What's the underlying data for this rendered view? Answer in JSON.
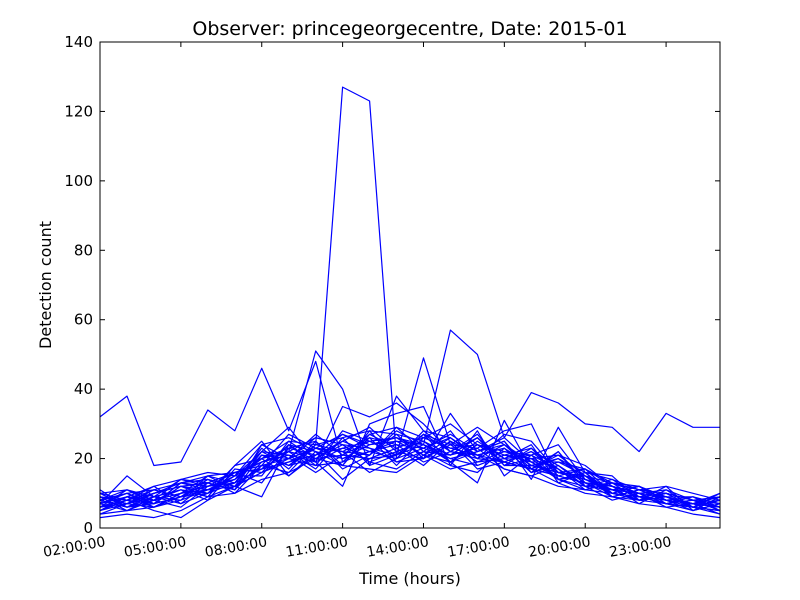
{
  "chart_data": {
    "type": "line",
    "title": "Observer: princegeorgecentre, Date: 2015-01",
    "xlabel": "Time (hours)",
    "ylabel": "Detection count",
    "ylim": [
      0,
      140
    ],
    "xlim": [
      2,
      25
    ],
    "yticks": [
      0,
      20,
      40,
      60,
      80,
      100,
      120,
      140
    ],
    "xticks": [
      {
        "value": 2,
        "label": "02:00:00"
      },
      {
        "value": 5,
        "label": "05:00:00"
      },
      {
        "value": 8,
        "label": "08:00:00"
      },
      {
        "value": 11,
        "label": "11:00:00"
      },
      {
        "value": 14,
        "label": "14:00:00"
      },
      {
        "value": 17,
        "label": "17:00:00"
      },
      {
        "value": 20,
        "label": "20:00:00"
      },
      {
        "value": 23,
        "label": "23:00:00"
      }
    ],
    "color": "#0000ff",
    "grid": false,
    "x": [
      2,
      3,
      4,
      5,
      6,
      7,
      8,
      9,
      10,
      11,
      12,
      13,
      14,
      15,
      16,
      17,
      18,
      19,
      20,
      21,
      22,
      23,
      24,
      25
    ],
    "series": [
      {
        "values": [
          32,
          38,
          18,
          19,
          34,
          28,
          46,
          28,
          48,
          19,
          22,
          25,
          24,
          57,
          50,
          26,
          39,
          36,
          30,
          29,
          22,
          33,
          29,
          29
        ]
      },
      {
        "values": [
          8,
          6,
          7,
          9,
          11,
          14,
          20,
          25,
          24,
          127,
          123,
          20,
          27,
          22,
          21,
          17,
          15,
          12,
          11,
          10,
          9,
          8,
          7,
          6
        ]
      },
      {
        "values": [
          5,
          9,
          12,
          14,
          13,
          16,
          17,
          22,
          51,
          40,
          18,
          38,
          28,
          26,
          21,
          19,
          17,
          15,
          13,
          10,
          8,
          7,
          6,
          5
        ]
      },
      {
        "values": [
          7,
          15,
          9,
          7,
          10,
          18,
          25,
          15,
          22,
          14,
          20,
          21,
          49,
          24,
          23,
          28,
          30,
          14,
          12,
          8,
          10,
          9,
          7,
          6
        ]
      },
      {
        "values": [
          10,
          11,
          8,
          14,
          16,
          15,
          22,
          29,
          19,
          35,
          32,
          36,
          30,
          22,
          26,
          18,
          18,
          16,
          17,
          13,
          11,
          12,
          10,
          8
        ]
      },
      {
        "values": [
          4,
          5,
          6,
          10,
          12,
          16,
          18,
          20,
          23,
          22,
          21,
          27,
          25,
          19,
          24,
          22,
          20,
          21,
          18,
          12,
          9,
          8,
          6,
          4
        ]
      },
      {
        "values": [
          6,
          8,
          5,
          3,
          8,
          12,
          9,
          24,
          19,
          12,
          30,
          33,
          35,
          18,
          28,
          15,
          21,
          24,
          14,
          11,
          10,
          7,
          8,
          5
        ]
      },
      {
        "values": [
          9,
          7,
          10,
          12,
          11,
          13,
          21,
          18,
          24,
          26,
          28,
          19,
          20,
          33,
          22,
          25,
          14,
          29,
          16,
          15,
          8,
          12,
          5,
          7
        ]
      },
      {
        "values": [
          3,
          4,
          3,
          5,
          9,
          10,
          14,
          16,
          20,
          18,
          17,
          16,
          21,
          19,
          13,
          31,
          17,
          22,
          13,
          9,
          7,
          6,
          4,
          3
        ]
      },
      {
        "values": [
          8,
          10,
          7,
          9,
          14,
          12,
          16,
          20,
          18,
          28,
          25,
          26,
          23,
          26,
          20,
          19,
          17,
          13,
          10,
          9,
          11,
          8,
          7,
          9
        ]
      },
      {
        "values": [
          6,
          7,
          11,
          13,
          12,
          14,
          20,
          22,
          26,
          24,
          19,
          17,
          22,
          18,
          16,
          23,
          16,
          18,
          12,
          14,
          9,
          10,
          8,
          6
        ]
      },
      {
        "values": [
          11,
          6,
          8,
          10,
          15,
          11,
          19,
          21,
          16,
          21,
          27,
          29,
          26,
          30,
          24,
          21,
          19,
          14,
          15,
          11,
          8,
          9,
          6,
          10
        ]
      },
      {
        "values": [
          5,
          9,
          6,
          8,
          11,
          15,
          24,
          26,
          22,
          20,
          22,
          24,
          19,
          22,
          20,
          27,
          25,
          16,
          14,
          12,
          10,
          7,
          9,
          5
        ]
      },
      {
        "values": [
          7,
          5,
          9,
          11,
          10,
          13,
          17,
          19,
          21,
          23,
          25,
          21,
          27,
          24,
          29,
          24,
          18,
          20,
          16,
          10,
          12,
          9,
          7,
          8
        ]
      },
      {
        "values": [
          9,
          8,
          12,
          7,
          13,
          16,
          13,
          23,
          25,
          17,
          21,
          28,
          24,
          20,
          18,
          21,
          23,
          15,
          13,
          12,
          7,
          11,
          8,
          7
        ]
      },
      {
        "values": [
          4,
          7,
          10,
          12,
          9,
          12,
          22,
          18,
          20,
          25,
          29,
          22,
          25,
          21,
          26,
          18,
          20,
          17,
          11,
          13,
          10,
          6,
          7,
          4
        ]
      },
      {
        "values": [
          8,
          11,
          7,
          13,
          14,
          10,
          18,
          27,
          23,
          22,
          16,
          20,
          23,
          27,
          22,
          26,
          19,
          19,
          17,
          10,
          9,
          10,
          6,
          8
        ]
      },
      {
        "values": [
          6,
          9,
          8,
          6,
          12,
          14,
          20,
          15,
          21,
          27,
          24,
          25,
          21,
          17,
          19,
          20,
          24,
          13,
          16,
          14,
          11,
          8,
          9,
          6
        ]
      },
      {
        "values": [
          10,
          6,
          9,
          11,
          8,
          17,
          16,
          24,
          18,
          19,
          26,
          18,
          26,
          23,
          21,
          23,
          16,
          22,
          12,
          11,
          12,
          7,
          5,
          9
        ]
      },
      {
        "values": [
          7,
          10,
          11,
          9,
          13,
          11,
          21,
          20,
          27,
          21,
          20,
          23,
          18,
          25,
          17,
          19,
          22,
          16,
          15,
          9,
          8,
          10,
          8,
          7
        ]
      },
      {
        "values": [
          5,
          8,
          7,
          12,
          10,
          15,
          15,
          25,
          20,
          24,
          23,
          19,
          22,
          21,
          23,
          17,
          15,
          18,
          13,
          12,
          10,
          9,
          6,
          5
        ]
      },
      {
        "values": [
          9,
          7,
          6,
          10,
          12,
          13,
          23,
          17,
          25,
          18,
          28,
          27,
          20,
          24,
          19,
          22,
          21,
          14,
          11,
          13,
          11,
          8,
          7,
          9
        ]
      },
      {
        "values": [
          6,
          11,
          9,
          8,
          15,
          16,
          19,
          22,
          17,
          26,
          18,
          21,
          24,
          19,
          25,
          20,
          17,
          20,
          14,
          10,
          9,
          7,
          8,
          6
        ]
      },
      {
        "values": [
          8,
          6,
          10,
          13,
          11,
          12,
          16,
          19,
          23,
          20,
          24,
          26,
          21,
          26,
          20,
          24,
          19,
          15,
          17,
          12,
          10,
          11,
          6,
          8
        ]
      },
      {
        "values": [
          7,
          9,
          8,
          11,
          9,
          18,
          20,
          23,
          21,
          25,
          22,
          20,
          28,
          22,
          27,
          18,
          23,
          17,
          12,
          11,
          8,
          9,
          9,
          7
        ]
      },
      {
        "values": [
          10,
          8,
          11,
          9,
          14,
          12,
          18,
          16,
          24,
          22,
          26,
          24,
          23,
          20,
          22,
          25,
          16,
          19,
          15,
          13,
          12,
          8,
          7,
          10
        ]
      },
      {
        "values": [
          5,
          7,
          9,
          14,
          12,
          14,
          22,
          21,
          19,
          23,
          21,
          29,
          22,
          28,
          18,
          21,
          20,
          14,
          16,
          9,
          11,
          10,
          8,
          5
        ]
      },
      {
        "values": [
          8,
          10,
          6,
          9,
          10,
          16,
          17,
          24,
          22,
          18,
          27,
          23,
          26,
          23,
          24,
          19,
          22,
          18,
          13,
          12,
          9,
          7,
          6,
          8
        ]
      },
      {
        "values": [
          6,
          8,
          10,
          12,
          13,
          11,
          24,
          20,
          26,
          24,
          19,
          22,
          20,
          25,
          21,
          23,
          18,
          16,
          14,
          11,
          10,
          9,
          7,
          6
        ]
      },
      {
        "values": [
          9,
          5,
          8,
          10,
          11,
          15,
          19,
          22,
          20,
          21,
          25,
          26,
          24,
          21,
          26,
          20,
          21,
          17,
          12,
          13,
          8,
          10,
          8,
          9
        ]
      },
      {
        "values": [
          7,
          9,
          7,
          13,
          15,
          13,
          21,
          18,
          23,
          27,
          23,
          21,
          27,
          19,
          22,
          24,
          17,
          21,
          15,
          10,
          12,
          8,
          5,
          7
        ]
      }
    ]
  }
}
